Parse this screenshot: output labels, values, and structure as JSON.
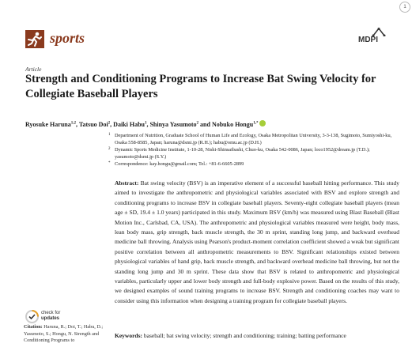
{
  "page_number": "1",
  "header": {
    "journal": "sports",
    "publisher": "MDPI"
  },
  "article": {
    "type": "Article",
    "title": "Strength and Conditioning Programs to Increase Bat Swing Velocity for Collegiate Baseball Players",
    "authors": [
      {
        "name": "Ryosuke Haruna",
        "sup": "1,2"
      },
      {
        "name": "Tatsuo Doi",
        "sup": "2"
      },
      {
        "name": "Daiki Habu",
        "sup": "1"
      },
      {
        "name": "Shinya Yasumoto",
        "sup": "2"
      },
      {
        "name": "Nobuko Hongu",
        "sup": "1,*"
      }
    ],
    "author_separators": [
      ", ",
      ", ",
      ", ",
      " and "
    ],
    "affiliations": [
      {
        "marker": "1",
        "text": "Department of Nutrition, Graduate School of Human Life and Ecology, Osaka Metropolitan University, 3-3-138, Sugimoto, Sumiyoshi-ku, Osaka 558-8585, Japan; haruna@dsmi.jp (R.H.); habu@omu.ac.jp (D.H.)"
      },
      {
        "marker": "2",
        "text": "Dynamic Sports Medicine Institute, 1-10-28, Nishi-Shinsaibashi, Chuo-ku, Osaka 542-0086, Japan; loco1952@dream.jp (T.D.); yasumoto@dsmi.jp (S.Y.)"
      },
      {
        "marker": "*",
        "text": "Correspondence: kay.hongu@gmail.com; Tel.: +81-6-6605-2899"
      }
    ],
    "abstract": {
      "label": "Abstract:",
      "text": "Bat swing velocity (BSV) is an imperative element of a successful baseball hitting performance. This study aimed to investigate the anthropometric and physiological variables associated with BSV and explore strength and conditioning programs to increase BSV in collegiate baseball players. Seventy-eight collegiate baseball players (mean age ± SD, 19.4 ± 1.0 years) participated in this study. Maximum BSV (km/h) was measured using Blast Baseball (Blast Motion Inc., Carlsbad, CA, USA). The anthropometric and physiological variables measured were height, body mass, lean body mass, grip strength, back muscle strength, the 30 m sprint, standing long jump, and backward overhead medicine ball throwing. Analysis using Pearson's product-moment correlation coefficient showed a weak but significant positive correlation between all anthropometric measurements to BSV. Significant relationships existed between physiological variables of hand grip, back muscle strength, and backward overhead medicine ball throwing, but not the standing long jump and 30 m sprint. These data show that BSV is related to anthropometric and physiological variables, particularly upper and lower body strength and full-body explosive power. Based on the results of this study, we designed examples of sound training programs to increase BSV. Strength and conditioning coaches may want to consider using this information when designing a training program for collegiate baseball players."
    },
    "keywords": {
      "label": "Keywords:",
      "text": "baseball; bat swing velocity; strength and conditioning; training; batting performance"
    }
  },
  "sidebar": {
    "check_updates": [
      "check for",
      "updates"
    ],
    "citation": {
      "label": "Citation:",
      "text": "Haruna, R.; Doi, T.; Habu, D.; Yasumoto, S.; Hongu, N. Strength and Conditioning Programs to"
    }
  }
}
